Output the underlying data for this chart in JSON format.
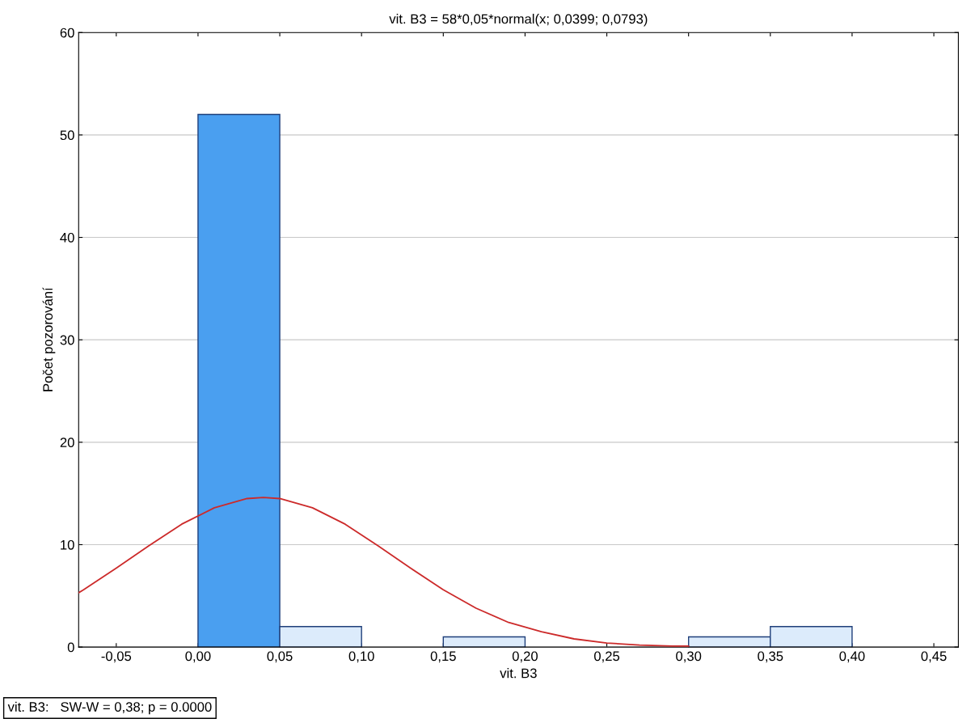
{
  "chart_data": {
    "type": "histogram",
    "title": "vit. B3 = 58*0,05*normal(x; 0,0399; 0,0793)",
    "xlabel": "vit. B3",
    "ylabel": "Počet pozorování",
    "bins": [
      0.0,
      0.05,
      0.1,
      0.15,
      0.2,
      0.25,
      0.3,
      0.35,
      0.4
    ],
    "values": [
      52,
      2,
      0,
      1,
      0,
      0,
      1,
      2
    ],
    "colors": [
      "#4a9ff0",
      "#dcebfb",
      "#dcebfb",
      "#dcebfb",
      "#dcebfb",
      "#dcebfb",
      "#dcebfb",
      "#dcebfb"
    ],
    "series": [
      {
        "type": "line",
        "color": "#cc2a2a",
        "x": [
          -0.073,
          -0.07,
          -0.05,
          -0.03,
          -0.01,
          0.01,
          0.03,
          0.04,
          0.05,
          0.07,
          0.09,
          0.11,
          0.13,
          0.15,
          0.17,
          0.19,
          0.21,
          0.23,
          0.25,
          0.27,
          0.29,
          0.3
        ],
        "values": [
          5.3,
          5.6,
          7.7,
          9.9,
          12.0,
          13.6,
          14.5,
          14.6,
          14.5,
          13.6,
          12.0,
          9.9,
          7.7,
          5.6,
          3.8,
          2.4,
          1.5,
          0.8,
          0.4,
          0.2,
          0.1,
          0.1
        ]
      }
    ],
    "xlim": [
      -0.073,
      0.465
    ],
    "ylim": [
      0,
      60
    ],
    "xticks": [
      {
        "value": -0.05,
        "label": "-0,05"
      },
      {
        "value": 0.0,
        "label": "0,00"
      },
      {
        "value": 0.05,
        "label": "0,05"
      },
      {
        "value": 0.1,
        "label": "0,10"
      },
      {
        "value": 0.15,
        "label": "0,15"
      },
      {
        "value": 0.2,
        "label": "0,20"
      },
      {
        "value": 0.25,
        "label": "0,25"
      },
      {
        "value": 0.3,
        "label": "0,30"
      },
      {
        "value": 0.35,
        "label": "0,35"
      },
      {
        "value": 0.4,
        "label": "0,40"
      },
      {
        "value": 0.45,
        "label": "0,45"
      }
    ],
    "yticks": [
      0,
      10,
      20,
      30,
      40,
      50,
      60
    ],
    "grid": "y",
    "annotations": [
      "vit. B3:   SW-W = 0,38; p = 0.0000"
    ]
  }
}
